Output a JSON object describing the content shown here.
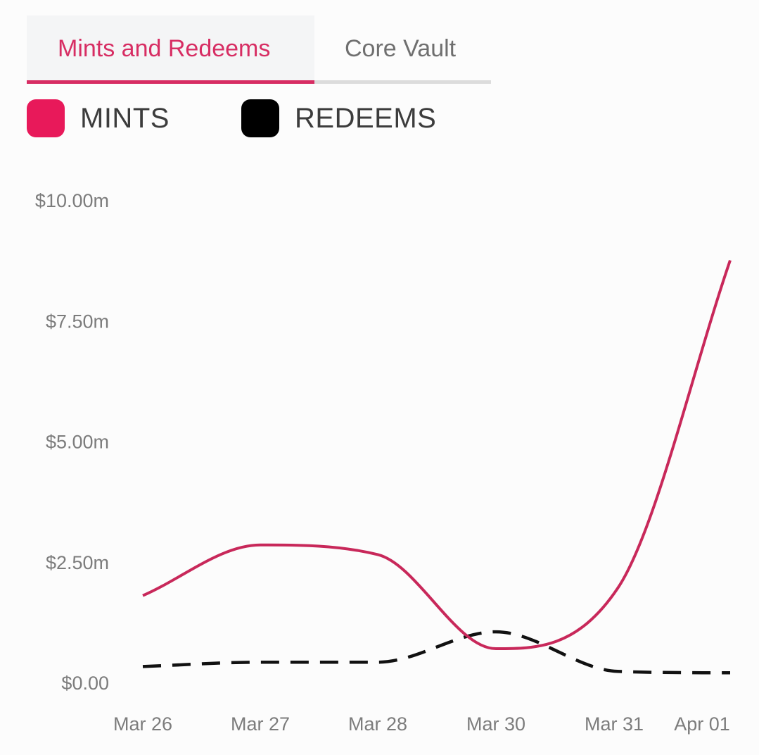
{
  "tabs": [
    {
      "label": "Mints and Redeems",
      "active": true
    },
    {
      "label": "Core Vault",
      "active": false
    }
  ],
  "colors": {
    "accent": "#d72d63",
    "mints_line": "#c8285a",
    "redeems_line": "#111111",
    "tick_text": "#7c7c7c"
  },
  "legend": [
    {
      "label": "MINTS",
      "color": "#e8195a"
    },
    {
      "label": "REDEEMS",
      "color": "#000000"
    }
  ],
  "chart_data": {
    "type": "line",
    "title": "",
    "xlabel": "",
    "ylabel": "",
    "ylim": [
      0,
      10
    ],
    "grid": false,
    "legend_position": "top-left",
    "y_ticks": [
      {
        "value": 0,
        "label": "$0.00"
      },
      {
        "value": 2.5,
        "label": "$2.50m"
      },
      {
        "value": 5,
        "label": "$5.00m"
      },
      {
        "value": 7.5,
        "label": "$7.50m"
      },
      {
        "value": 10,
        "label": "$10.00m"
      }
    ],
    "x_ticks": [
      "Mar 26",
      "Mar 27",
      "Mar 28",
      "Mar 30",
      "Mar 31",
      "Apr 01"
    ],
    "series": [
      {
        "name": "MINTS",
        "style": "solid",
        "values": [
          1.8,
          2.85,
          2.65,
          0.7,
          1.95,
          8.75
        ]
      },
      {
        "name": "REDEEMS",
        "style": "dashed",
        "values": [
          0.33,
          0.42,
          0.42,
          1.05,
          0.23,
          0.2
        ]
      }
    ]
  }
}
